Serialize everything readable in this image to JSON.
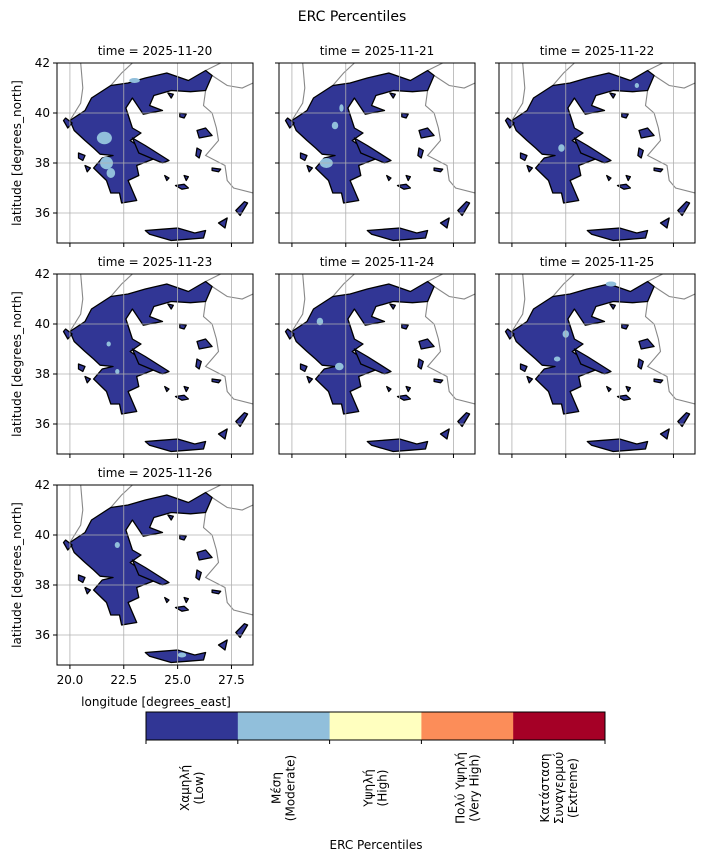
{
  "chart_data": {
    "type": "map-facets",
    "title": "ERC Percentiles",
    "panels": [
      {
        "title": "time = 2025-11-20"
      },
      {
        "title": "time = 2025-11-21"
      },
      {
        "title": "time = 2025-11-22"
      },
      {
        "title": "time = 2025-11-23"
      },
      {
        "title": "time = 2025-11-24"
      },
      {
        "title": "time = 2025-11-25"
      },
      {
        "title": "time = 2025-11-26"
      }
    ],
    "xlabel": "longitude [degrees_east]",
    "ylabel": "latitude [degrees_north]",
    "xlim": [
      19.4,
      28.5
    ],
    "ylim": [
      34.8,
      42
    ],
    "xticks": [
      {
        "value": 20,
        "label": "20.0"
      },
      22.5,
      {
        "value": 25,
        "label": "25.0"
      },
      27.5
    ],
    "yticks": [
      36,
      38,
      40,
      42
    ],
    "grid": true,
    "colorbar": {
      "label": "ERC Percentiles",
      "categories": [
        [
          "Χαμηλή",
          "(Low)"
        ],
        [
          "Μέση",
          "(Moderate)"
        ],
        [
          "Υψηλή",
          "(High)"
        ],
        [
          "Πολύ Υψηλή",
          "(Very High)"
        ],
        [
          "Κατάσταση",
          "Συναγερμού",
          "(Extreme)"
        ]
      ],
      "colors": [
        "#313695",
        "#91bfdb",
        "#ffffbf",
        "#fc8d59",
        "#a50026"
      ]
    }
  }
}
